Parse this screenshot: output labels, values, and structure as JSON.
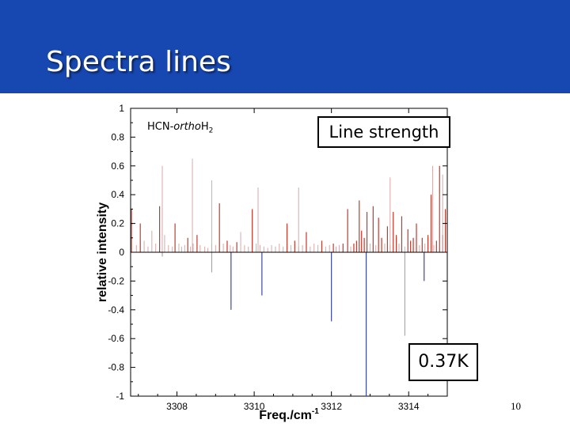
{
  "slide": {
    "title": "Spectra lines",
    "page_number": "10",
    "line_strength_label": "Line strength",
    "temperature_label": "0.37K",
    "molecule_prefix": "HCN-",
    "molecule_italic": "ortho",
    "molecule_element": "H",
    "molecule_subscript": "2"
  },
  "colors": {
    "title_bar": "#1747b0",
    "positive_lines": "#c0392b",
    "negative_lines": "#3b4a9c",
    "faint_lines": "#9a9a9a"
  },
  "chart_data": {
    "type": "bar",
    "ylabel": "relative intensity",
    "xlabel": "Freq./cm",
    "xlabel_superscript": "-1",
    "xlim": [
      3306.8,
      3315.0
    ],
    "ylim": [
      -1,
      1
    ],
    "x_ticks": [
      "3308",
      "3310",
      "3312",
      "3314"
    ],
    "y_ticks": [
      "1",
      "0.8",
      "0.6",
      "0.4",
      "0.2",
      "0",
      "-0.2",
      "-0.4",
      "-0.6",
      "-0.8",
      "-1"
    ],
    "grid": false,
    "series": [
      {
        "x": [
          3306.82,
          3306.95,
          3307.05,
          3307.15,
          3307.25,
          3307.35,
          3307.45,
          3307.55,
          3307.62,
          3307.68,
          3307.78,
          3307.88,
          3307.95,
          3308.05,
          3308.12,
          3308.2,
          3308.28,
          3308.35,
          3308.42,
          3308.52,
          3308.6,
          3308.72,
          3308.8,
          3308.9,
          3309.0,
          3309.1,
          3309.2,
          3309.3,
          3309.38,
          3309.45,
          3309.55,
          3309.65,
          3309.75,
          3309.85,
          3309.95,
          3310.05,
          3310.15,
          3310.25,
          3310.35,
          3310.45,
          3310.55,
          3310.65,
          3310.75,
          3310.85,
          3310.95,
          3311.05,
          3311.15,
          3311.25,
          3311.35,
          3311.45,
          3311.55,
          3311.65,
          3311.75,
          3311.85,
          3311.95,
          3312.05,
          3312.12,
          3312.2,
          3312.3,
          3312.42,
          3312.5,
          3312.58,
          3312.65,
          3312.72,
          3312.78,
          3312.85,
          3312.92,
          3313.0,
          3313.08,
          3313.15,
          3313.22,
          3313.3,
          3313.38,
          3313.45,
          3313.52,
          3313.6,
          3313.68,
          3313.75,
          3313.82,
          3313.9,
          3313.98,
          3314.05,
          3314.12,
          3314.2,
          3314.28,
          3314.35,
          3314.42,
          3314.5,
          3314.58,
          3314.65,
          3314.72,
          3314.8,
          3314.88,
          3314.95
        ],
        "y": [
          0.3,
          0.05,
          0.2,
          0.08,
          0.04,
          0.15,
          0.06,
          0.32,
          0.07,
          0.12,
          0.05,
          0.04,
          0.2,
          0.06,
          0.04,
          0.05,
          0.1,
          0.04,
          0.06,
          0.12,
          0.05,
          0.04,
          0.03,
          0.06,
          0.05,
          0.34,
          0.06,
          0.08,
          0.05,
          0.04,
          0.07,
          0.14,
          0.05,
          0.04,
          0.3,
          0.06,
          0.05,
          0.04,
          0.03,
          0.05,
          0.04,
          0.06,
          0.04,
          0.2,
          0.05,
          0.08,
          0.04,
          0.05,
          0.14,
          0.04,
          0.06,
          0.05,
          0.08,
          0.04,
          0.05,
          0.06,
          0.04,
          0.05,
          0.06,
          0.3,
          0.04,
          0.06,
          0.08,
          0.36,
          0.15,
          0.1,
          0.28,
          0.06,
          0.32,
          0.05,
          0.24,
          0.1,
          0.06,
          0.18,
          0.05,
          0.28,
          0.12,
          0.06,
          0.25,
          0.04,
          0.16,
          0.08,
          0.1,
          0.2,
          0.05,
          0.1,
          0.06,
          0.12,
          0.4,
          0.05,
          0.08,
          0.6,
          0.12,
          0.3
        ],
        "faint": [
          false,
          true,
          false,
          true,
          true,
          true,
          true,
          false,
          true,
          true,
          true,
          true,
          false,
          true,
          true,
          true,
          false,
          true,
          true,
          false,
          true,
          true,
          true,
          true,
          true,
          false,
          true,
          false,
          true,
          true,
          false,
          true,
          true,
          true,
          false,
          true,
          true,
          true,
          true,
          true,
          true,
          true,
          true,
          false,
          true,
          false,
          true,
          true,
          false,
          true,
          true,
          true,
          false,
          true,
          true,
          false,
          true,
          true,
          false,
          false,
          true,
          false,
          false,
          false,
          false,
          false,
          false,
          true,
          false,
          true,
          false,
          false,
          true,
          false,
          true,
          false,
          false,
          true,
          false,
          true,
          false,
          false,
          false,
          false,
          true,
          false,
          true,
          false,
          false,
          true,
          false,
          false,
          false,
          false
        ]
      },
      {
        "x": [
          3307.62,
          3308.4,
          3308.9,
          3310.1,
          3311.15,
          3313.52,
          3314.62,
          3314.88
        ],
        "y": [
          0.6,
          0.65,
          0.5,
          0.45,
          0.45,
          0.52,
          0.6,
          0.54
        ],
        "faint": [
          true,
          true,
          true,
          true,
          true,
          true,
          true,
          true
        ]
      },
      {
        "x": [
          3309.4,
          3310.2,
          3312.0,
          3312.9,
          3314.4
        ],
        "y": [
          -0.4,
          -0.3,
          -0.48,
          -1.0,
          -0.2
        ],
        "faint": [
          false,
          false,
          false,
          false,
          false
        ]
      },
      {
        "x": [
          3307.62,
          3308.9,
          3313.9
        ],
        "y": [
          -0.03,
          -0.14,
          -0.58
        ],
        "faint": [
          true,
          true,
          true
        ]
      }
    ]
  }
}
